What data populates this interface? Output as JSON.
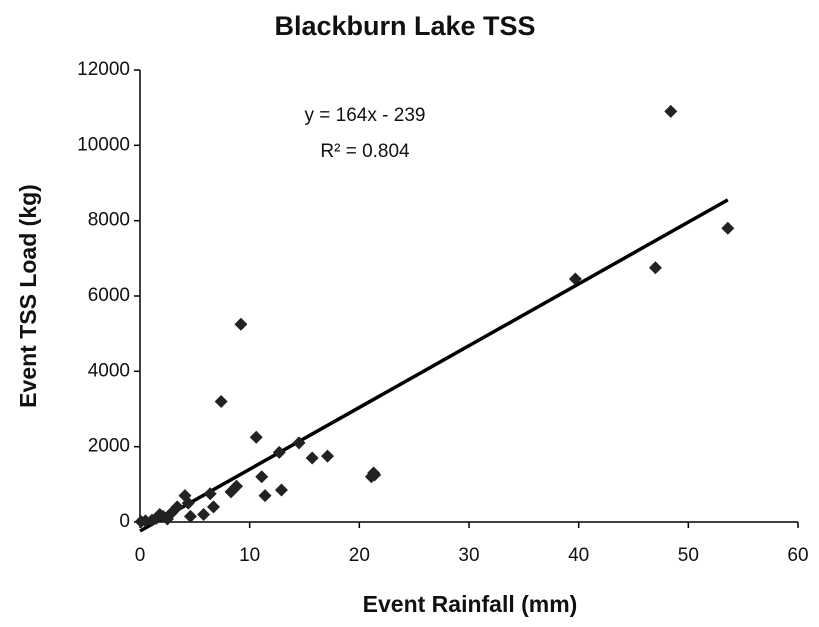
{
  "chart_data": {
    "type": "scatter",
    "title": "Blackburn Lake TSS",
    "x_label": "Event Rainfall (mm)",
    "y_label": "Event TSS Load (kg)",
    "series": [
      {
        "color": "#222222",
        "x": [
          48.4,
          53.6,
          47,
          39.7,
          9.2,
          7.4,
          10.6,
          14.5,
          12.7,
          15.7,
          17.1,
          11.1,
          21.3,
          21.4,
          21.1,
          11.4,
          12.9,
          8.8,
          8.3,
          6.4,
          6.7,
          5.8,
          4.1,
          4.4,
          3.4,
          4.6,
          2.9,
          2.1,
          1.5,
          1.1,
          0.5,
          0.1,
          1.8,
          2.5
        ],
        "values": [
          10900,
          7800,
          6750,
          6450,
          5250,
          3200,
          2250,
          2100,
          1850,
          1700,
          1750,
          1200,
          1300,
          1250,
          1200,
          700,
          850,
          950,
          800,
          750,
          400,
          200,
          700,
          500,
          400,
          150,
          250,
          150,
          100,
          50,
          30,
          10,
          200,
          80
        ]
      }
    ],
    "trendline": {
      "slope": 164,
      "intercept": -239,
      "x": [
        0,
        53.6
      ],
      "color": "#000000",
      "equation": "y = 164x - 239",
      "r_squared": "R² = 0.804"
    },
    "xlim": [
      0,
      60
    ],
    "xticks": [
      0,
      10,
      20,
      30,
      40,
      50,
      60
    ],
    "ylim": [
      0,
      12000
    ],
    "yticks": [
      0,
      2000,
      4000,
      6000,
      8000,
      10000,
      12000
    ],
    "grid": false
  }
}
